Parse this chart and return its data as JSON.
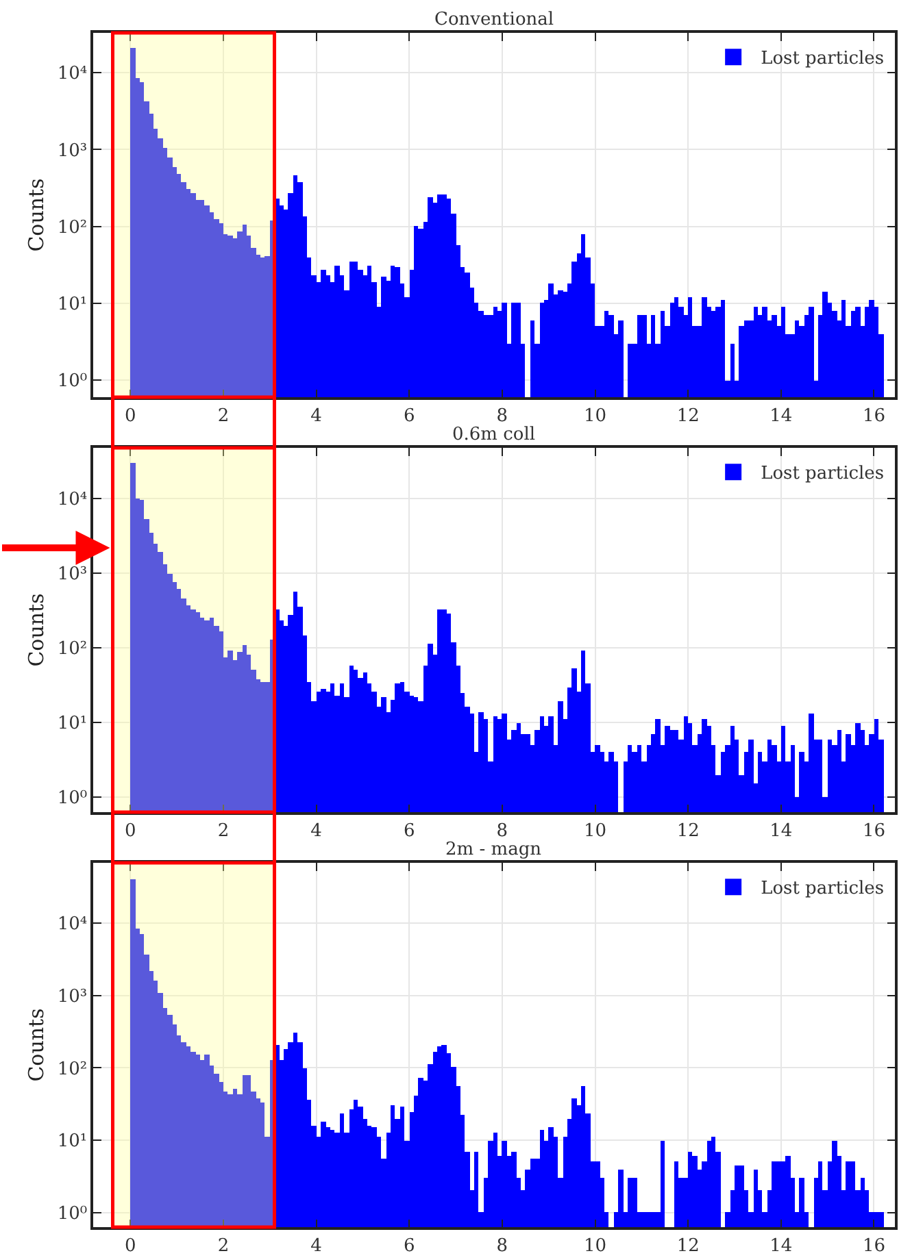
{
  "chart_data": [
    {
      "type": "histogram",
      "title": "Conventional",
      "ylabel": "Counts",
      "bins": [
        0.0,
        0.1,
        0.2,
        0.3,
        0.4,
        0.5,
        0.6,
        0.7,
        0.8,
        0.9,
        1.0,
        1.1,
        1.2,
        1.3,
        1.4,
        1.5,
        1.6,
        1.7,
        1.8,
        1.9,
        2.0,
        2.1,
        2.2,
        2.3,
        2.4,
        2.5,
        2.6,
        2.7,
        2.8,
        2.9,
        3.0,
        3.1,
        3.2,
        3.3,
        3.4,
        3.5,
        3.6,
        3.7,
        3.8,
        3.9,
        4.0,
        4.1,
        4.2,
        4.3,
        4.4,
        4.5,
        4.6,
        4.7,
        4.8,
        4.9,
        5.0,
        5.1,
        5.2,
        5.3,
        5.4,
        5.5,
        5.6,
        5.7,
        5.8,
        5.9,
        6.0,
        6.1,
        6.2,
        6.3,
        6.4,
        6.5,
        6.6,
        6.7,
        6.8,
        6.9,
        7.0,
        7.1,
        7.2,
        7.3,
        7.4,
        7.5,
        7.6,
        7.7,
        7.8,
        7.9,
        8.0,
        8.1,
        8.2,
        8.3,
        8.4,
        8.5,
        8.6,
        8.7,
        8.8,
        8.9,
        9.0,
        9.1,
        9.2,
        9.3,
        9.4,
        9.5,
        9.6,
        9.7,
        9.8,
        9.9,
        10.0,
        10.1,
        10.2,
        10.3,
        10.4,
        10.5,
        10.6,
        10.7,
        10.8,
        10.9,
        11.0,
        11.1,
        11.2,
        11.3,
        11.4,
        11.5,
        11.6,
        11.7,
        11.8,
        11.9,
        12.0,
        12.1,
        12.2,
        12.3,
        12.4,
        12.5,
        12.6,
        12.7,
        12.8,
        12.9,
        13.0,
        13.1,
        13.2,
        13.3,
        13.4,
        13.5,
        13.6,
        13.7,
        13.8,
        13.9,
        14.0,
        14.1,
        14.2,
        14.3,
        14.4,
        14.5,
        14.6,
        14.7,
        14.8,
        14.9,
        15.0,
        15.1,
        15.2,
        15.3,
        15.4,
        15.5,
        15.6,
        15.7,
        15.8,
        15.9,
        16.0,
        16.1,
        16.2
      ],
      "series": [
        {
          "name": "Lost particles",
          "color": "#0000ff",
          "values": [
            21000,
            8500,
            7400,
            4300,
            2900,
            1900,
            1400,
            1050,
            800,
            600,
            490,
            380,
            310,
            270,
            220,
            220,
            190,
            155,
            127,
            110,
            80,
            75,
            70,
            85,
            105,
            75,
            53,
            43,
            40,
            41,
            120,
            235,
            190,
            165,
            270,
            460,
            380,
            135,
            40,
            23,
            19,
            27,
            23,
            19,
            31,
            23,
            15,
            35,
            35,
            27,
            23,
            31,
            19,
            9,
            22,
            20,
            31,
            29,
            18,
            12,
            27,
            100,
            95,
            115,
            240,
            200,
            260,
            260,
            230,
            145,
            57,
            30,
            25,
            16,
            10,
            8,
            7,
            7,
            9,
            8,
            10,
            3,
            10,
            10,
            3,
            null,
            6,
            3,
            10,
            11,
            18,
            13,
            15,
            14,
            18,
            35,
            45,
            80,
            40,
            18,
            5,
            5,
            8,
            7,
            4,
            6,
            null,
            3,
            3,
            7,
            7,
            3,
            7,
            3,
            8,
            5,
            10,
            12,
            9,
            7,
            12,
            5,
            5,
            12,
            9,
            8,
            9,
            11,
            1,
            3,
            1,
            5,
            6,
            6,
            9,
            7,
            9,
            6,
            7,
            5,
            9,
            4,
            4,
            6,
            5,
            7,
            9,
            1,
            7,
            14,
            10,
            8,
            6,
            11,
            5,
            8,
            9,
            5,
            9,
            11,
            9,
            4
          ]
        }
      ],
      "xlim": [
        -0.8,
        16.45
      ],
      "ylim": [
        0.6,
        33000
      ],
      "xticks": [
        0,
        2,
        4,
        6,
        8,
        10,
        12,
        14,
        16
      ],
      "yticks": [
        {
          "value": 1,
          "label": "10⁰"
        },
        {
          "value": 10,
          "label": "10¹"
        },
        {
          "value": 100,
          "label": "10²"
        },
        {
          "value": 1000,
          "label": "10³"
        },
        {
          "value": 10000,
          "label": "10⁴"
        }
      ],
      "log": true,
      "grid": true,
      "legend": "top right",
      "bands": [
        {
          "axis": "x",
          "from": -0.38,
          "to": 3.1,
          "color": "#ffff99"
        }
      ]
    },
    {
      "type": "histogram",
      "title": "0.6m coll",
      "ylabel": "Counts",
      "bins": [
        0.0,
        0.1,
        0.2,
        0.3,
        0.4,
        0.5,
        0.6,
        0.7,
        0.8,
        0.9,
        1.0,
        1.1,
        1.2,
        1.3,
        1.4,
        1.5,
        1.6,
        1.7,
        1.8,
        1.9,
        2.0,
        2.1,
        2.2,
        2.3,
        2.4,
        2.5,
        2.6,
        2.7,
        2.8,
        2.9,
        3.0,
        3.1,
        3.2,
        3.3,
        3.4,
        3.5,
        3.6,
        3.7,
        3.8,
        3.9,
        4.0,
        4.1,
        4.2,
        4.3,
        4.4,
        4.5,
        4.6,
        4.7,
        4.8,
        4.9,
        5.0,
        5.1,
        5.2,
        5.3,
        5.4,
        5.5,
        5.6,
        5.7,
        5.8,
        5.9,
        6.0,
        6.1,
        6.2,
        6.3,
        6.4,
        6.5,
        6.6,
        6.7,
        6.8,
        6.9,
        7.0,
        7.1,
        7.2,
        7.3,
        7.4,
        7.5,
        7.6,
        7.7,
        7.8,
        7.9,
        8.0,
        8.1,
        8.2,
        8.3,
        8.4,
        8.5,
        8.6,
        8.7,
        8.8,
        8.9,
        9.0,
        9.1,
        9.2,
        9.3,
        9.4,
        9.5,
        9.6,
        9.7,
        9.8,
        9.9,
        10.0,
        10.1,
        10.2,
        10.3,
        10.4,
        10.5,
        10.6,
        10.7,
        10.8,
        10.9,
        11.0,
        11.1,
        11.2,
        11.3,
        11.4,
        11.5,
        11.6,
        11.7,
        11.8,
        11.9,
        12.0,
        12.1,
        12.2,
        12.3,
        12.4,
        12.5,
        12.6,
        12.7,
        12.8,
        12.9,
        13.0,
        13.1,
        13.2,
        13.3,
        13.4,
        13.5,
        13.6,
        13.7,
        13.8,
        13.9,
        14.0,
        14.1,
        14.2,
        14.3,
        14.4,
        14.5,
        14.6,
        14.7,
        14.8,
        14.9,
        15.0,
        15.1,
        15.2,
        15.3,
        15.4,
        15.5,
        15.6,
        15.7,
        15.8,
        15.9,
        16.0,
        16.1,
        16.2
      ],
      "series": [
        {
          "name": "Lost particles",
          "color": "#0000ff",
          "values": [
            30000,
            10000,
            9500,
            5300,
            3500,
            2500,
            1900,
            1300,
            1000,
            760,
            610,
            460,
            380,
            330,
            300,
            250,
            230,
            250,
            200,
            165,
            76,
            93,
            70,
            87,
            107,
            81,
            50,
            38,
            35,
            35,
            130,
            330,
            230,
            200,
            280,
            570,
            350,
            150,
            35,
            19,
            26,
            28,
            26,
            33,
            23,
            33,
            22,
            57,
            50,
            40,
            46,
            33,
            26,
            16,
            22,
            14,
            20,
            33,
            35,
            26,
            23,
            22,
            19,
            57,
            115,
            81,
            330,
            330,
            285,
            120,
            57,
            25,
            16,
            13,
            4,
            14,
            11,
            3,
            12,
            11,
            13,
            6,
            8,
            10,
            7,
            7,
            5,
            8,
            12,
            9,
            12,
            5,
            19,
            11,
            30,
            53,
            26,
            93,
            33,
            4,
            5,
            4,
            3,
            4,
            3,
            null,
            3,
            5,
            4,
            5,
            3,
            5,
            7,
            11,
            5,
            9,
            8,
            8,
            6,
            12,
            10,
            5,
            7,
            11,
            9,
            5,
            2,
            4,
            5,
            9,
            6,
            2,
            4,
            6,
            1.5,
            4,
            3,
            6,
            5,
            3,
            9,
            3,
            5,
            1,
            4,
            3,
            13,
            6,
            6,
            1,
            6,
            5,
            8,
            3,
            7,
            5,
            10,
            8,
            5,
            7,
            11,
            6
          ]
        }
      ],
      "xlim": [
        -0.8,
        16.45
      ],
      "ylim": [
        0.63,
        48000
      ],
      "xticks": [
        0,
        2,
        4,
        6,
        8,
        10,
        12,
        14,
        16
      ],
      "yticks": [
        {
          "value": 1,
          "label": "10⁰"
        },
        {
          "value": 10,
          "label": "10¹"
        },
        {
          "value": 100,
          "label": "10²"
        },
        {
          "value": 1000,
          "label": "10³"
        },
        {
          "value": 10000,
          "label": "10⁴"
        }
      ],
      "log": true,
      "grid": true,
      "legend": "top right",
      "bands": [
        {
          "axis": "x",
          "from": -0.38,
          "to": 3.1,
          "color": "#ffff99"
        }
      ]
    },
    {
      "type": "histogram",
      "title": "2m - magn",
      "ylabel": "Counts",
      "bins": [
        0.0,
        0.1,
        0.2,
        0.3,
        0.4,
        0.5,
        0.6,
        0.7,
        0.8,
        0.9,
        1.0,
        1.1,
        1.2,
        1.3,
        1.4,
        1.5,
        1.6,
        1.7,
        1.8,
        1.9,
        2.0,
        2.1,
        2.2,
        2.3,
        2.4,
        2.5,
        2.6,
        2.7,
        2.8,
        2.9,
        3.0,
        3.1,
        3.2,
        3.3,
        3.4,
        3.5,
        3.6,
        3.7,
        3.8,
        3.9,
        4.0,
        4.1,
        4.2,
        4.3,
        4.4,
        4.5,
        4.6,
        4.7,
        4.8,
        4.9,
        5.0,
        5.1,
        5.2,
        5.3,
        5.4,
        5.5,
        5.6,
        5.7,
        5.8,
        5.9,
        6.0,
        6.1,
        6.2,
        6.3,
        6.4,
        6.5,
        6.6,
        6.7,
        6.8,
        6.9,
        7.0,
        7.1,
        7.2,
        7.3,
        7.4,
        7.5,
        7.6,
        7.7,
        7.8,
        7.9,
        8.0,
        8.1,
        8.2,
        8.3,
        8.4,
        8.5,
        8.6,
        8.7,
        8.8,
        8.9,
        9.0,
        9.1,
        9.2,
        9.3,
        9.4,
        9.5,
        9.6,
        9.7,
        9.8,
        9.9,
        10.0,
        10.1,
        10.2,
        10.3,
        10.4,
        10.5,
        10.6,
        10.7,
        10.8,
        10.9,
        11.0,
        11.1,
        11.2,
        11.3,
        11.4,
        11.5,
        11.6,
        11.7,
        11.8,
        11.9,
        12.0,
        12.1,
        12.2,
        12.3,
        12.4,
        12.5,
        12.6,
        12.7,
        12.8,
        12.9,
        13.0,
        13.1,
        13.2,
        13.3,
        13.4,
        13.5,
        13.6,
        13.7,
        13.8,
        13.9,
        14.0,
        14.1,
        14.2,
        14.3,
        14.4,
        14.5,
        14.6,
        14.7,
        14.8,
        14.9,
        15.0,
        15.1,
        15.2,
        15.3,
        15.4,
        15.5,
        15.6,
        15.7,
        15.8,
        15.9,
        16.0,
        16.1,
        16.2
      ],
      "series": [
        {
          "name": "Lost particles",
          "color": "#0000ff",
          "values": [
            40000,
            8500,
            7000,
            3700,
            2200,
            1600,
            1100,
            670,
            540,
            400,
            280,
            230,
            200,
            170,
            150,
            130,
            150,
            110,
            84,
            63,
            47,
            44,
            51,
            44,
            78,
            78,
            47,
            38,
            33,
            11,
            130,
            210,
            130,
            185,
            230,
            300,
            230,
            100,
            36,
            16,
            11,
            18,
            15,
            14,
            13,
            23,
            13,
            27,
            36,
            29,
            20,
            16,
            15,
            11,
            5.6,
            13,
            31,
            20,
            29,
            10,
            25,
            41,
            73,
            68,
            111,
            170,
            195,
            210,
            160,
            105,
            55,
            22,
            7,
            2,
            7,
            1,
            3,
            10,
            13,
            6,
            10,
            6,
            7,
            3,
            2,
            4,
            5.5,
            5.5,
            14,
            10,
            15,
            11,
            3,
            11,
            20,
            38,
            31,
            55,
            23,
            5,
            5,
            3,
            1,
            null,
            1,
            4,
            1,
            3,
            3,
            1,
            1,
            1,
            1,
            1,
            10,
            null,
            null,
            5,
            3,
            3,
            7,
            6,
            4,
            5,
            10,
            11,
            7,
            null,
            1,
            2,
            4.5,
            4.5,
            2,
            1,
            4,
            2,
            1,
            2,
            5,
            5,
            5,
            6,
            3,
            1,
            3,
            1,
            null,
            3,
            5,
            2,
            5,
            10,
            6,
            2,
            5,
            5,
            2,
            3,
            2,
            1,
            1,
            1
          ]
        }
      ],
      "xlim": [
        -0.8,
        16.45
      ],
      "ylim": [
        0.63,
        68000
      ],
      "xticks": [
        0,
        2,
        4,
        6,
        8,
        10,
        12,
        14,
        16
      ],
      "yticks": [
        {
          "value": 1,
          "label": "10⁰"
        },
        {
          "value": 10,
          "label": "10¹"
        },
        {
          "value": 100,
          "label": "10²"
        },
        {
          "value": 1000,
          "label": "10³"
        },
        {
          "value": 10000,
          "label": "10⁴"
        }
      ],
      "log": true,
      "grid": true,
      "legend": "top right",
      "bands": [
        {
          "axis": "x",
          "from": -0.38,
          "to": 3.1,
          "color": "#ffff99"
        }
      ]
    }
  ]
}
